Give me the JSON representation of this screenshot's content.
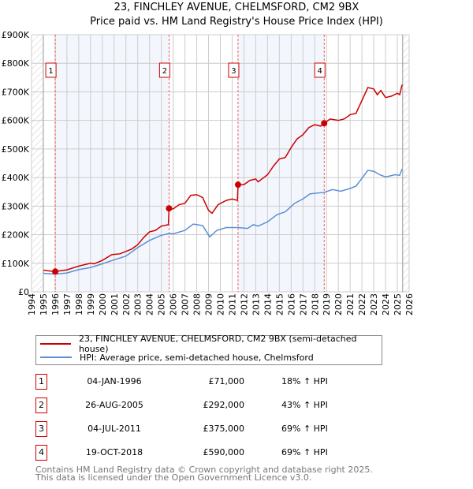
{
  "chart_data": {
    "type": "line",
    "title": "23, FINCHLEY AVENUE, CHELMSFORD, CM2 9BX",
    "subtitle": "Price paid vs. HM Land Registry's House Price Index (HPI)",
    "xlim": [
      1994,
      2026
    ],
    "ylim": [
      0,
      900000
    ],
    "yticks": [
      {
        "v": 0,
        "l": "£0"
      },
      {
        "v": 100000,
        "l": "£100K"
      },
      {
        "v": 200000,
        "l": "£200K"
      },
      {
        "v": 300000,
        "l": "£300K"
      },
      {
        "v": 400000,
        "l": "£400K"
      },
      {
        "v": 500000,
        "l": "£500K"
      },
      {
        "v": 600000,
        "l": "£600K"
      },
      {
        "v": 700000,
        "l": "£700K"
      },
      {
        "v": 800000,
        "l": "£800K"
      },
      {
        "v": 900000,
        "l": "£900K"
      }
    ],
    "xticks": [
      "1994",
      "1995",
      "1996",
      "1997",
      "1998",
      "1999",
      "2000",
      "2001",
      "2002",
      "2003",
      "2004",
      "2005",
      "2006",
      "2007",
      "2008",
      "2009",
      "2010",
      "2011",
      "2012",
      "2013",
      "2014",
      "2015",
      "2016",
      "2017",
      "2018",
      "2019",
      "2020",
      "2021",
      "2022",
      "2023",
      "2024",
      "2025",
      "2026"
    ],
    "grid": true,
    "series": [
      {
        "name": "23, FINCHLEY AVENUE, CHELMSFORD, CM2 9BX (semi-detached house)",
        "color": "#cc0000",
        "x": [
          1995,
          1995.5,
          1996,
          1997,
          1998,
          1999,
          1999.3,
          2000,
          2000.8,
          2001.5,
          2002.5,
          2003,
          2003.5,
          2004,
          2004.5,
          2005,
          2005.6,
          2005.65,
          2006,
          2006.5,
          2007,
          2007.5,
          2008,
          2008.5,
          2009,
          2009.3,
          2009.8,
          2010.5,
          2011,
          2011.45,
          2011.5,
          2012,
          2012.5,
          2013,
          2013.2,
          2014,
          2014.5,
          2015,
          2015.5,
          2016,
          2016.5,
          2017,
          2017.5,
          2018,
          2018.5,
          2018.8,
          2019.3,
          2020,
          2020.5,
          2021,
          2021.5,
          2022,
          2022.5,
          2023,
          2023.3,
          2023.6,
          2024,
          2024.5,
          2025,
          2025.2,
          2025.4
        ],
        "y": [
          76000,
          73000,
          71000,
          77000,
          90000,
          100000,
          98000,
          110000,
          130000,
          133000,
          150000,
          165000,
          190000,
          210000,
          215000,
          230000,
          235000,
          292000,
          290000,
          305000,
          310000,
          338000,
          340000,
          330000,
          285000,
          275000,
          305000,
          320000,
          325000,
          320000,
          375000,
          375000,
          390000,
          395000,
          385000,
          410000,
          440000,
          465000,
          470000,
          505000,
          535000,
          550000,
          575000,
          585000,
          580000,
          590000,
          605000,
          600000,
          605000,
          620000,
          625000,
          670000,
          715000,
          710000,
          690000,
          705000,
          680000,
          685000,
          695000,
          690000,
          725000
        ]
      },
      {
        "name": "HPI: Average price, semi-detached house, Chelmsford",
        "color": "#5b8fd6",
        "x": [
          1995,
          1996,
          1997,
          1998,
          1999,
          2000,
          2001,
          2002,
          2003,
          2004,
          2005,
          2005.65,
          2006,
          2007,
          2007.7,
          2008.5,
          2009.1,
          2009.7,
          2010.5,
          2011.5,
          2012.3,
          2012.8,
          2013.2,
          2014,
          2014.8,
          2015.5,
          2016.3,
          2017,
          2017.6,
          2018.8,
          2019.5,
          2020.2,
          2021,
          2021.5,
          2022.5,
          2023,
          2023.5,
          2024,
          2024.8,
          2025.2,
          2025.4
        ],
        "y": [
          65000,
          62000,
          66000,
          78000,
          85000,
          98000,
          112000,
          125000,
          155000,
          180000,
          198000,
          204000,
          203000,
          215000,
          237000,
          232000,
          192000,
          215000,
          225000,
          225000,
          222000,
          235000,
          230000,
          245000,
          270000,
          280000,
          310000,
          325000,
          343000,
          348000,
          358000,
          352000,
          362000,
          370000,
          425000,
          422000,
          410000,
          402000,
          410000,
          408000,
          430000
        ]
      }
    ],
    "sales": [
      {
        "n": "1",
        "x": 1996.01,
        "date": "04-JAN-1996",
        "price": "£71,000",
        "pv": 71000,
        "hpi": "18% ↑ HPI"
      },
      {
        "n": "2",
        "x": 2005.65,
        "date": "26-AUG-2005",
        "price": "£292,000",
        "pv": 292000,
        "hpi": "43% ↑ HPI"
      },
      {
        "n": "3",
        "x": 2011.5,
        "date": "04-JUL-2011",
        "price": "£375,000",
        "pv": 375000,
        "hpi": "69% ↑ HPI"
      },
      {
        "n": "4",
        "x": 2018.8,
        "date": "19-OCT-2018",
        "price": "£590,000",
        "pv": 590000,
        "hpi": "69% ↑ HPI"
      }
    ],
    "legend_position": "below"
  },
  "footer": {
    "line1": "Contains HM Land Registry data © Crown copyright and database right 2025.",
    "line2": "This data is licensed under the Open Government Licence v3.0."
  }
}
